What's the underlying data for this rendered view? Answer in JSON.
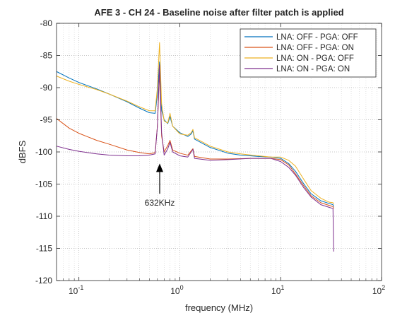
{
  "chart_data": {
    "type": "line",
    "title": "AFE 3 - CH 24 - Baseline noise after filter patch is applied",
    "xlabel": "frequency (MHz)",
    "ylabel": "dBFS",
    "xscale": "log",
    "xlim": [
      0.06,
      100
    ],
    "ylim": [
      -120,
      -80
    ],
    "grid": true,
    "legend_position": "top-right",
    "x_ticks": [
      0.1,
      1,
      10,
      100
    ],
    "x_tick_labels": [
      {
        "base": "10",
        "exp": "-1"
      },
      {
        "base": "10",
        "exp": "0"
      },
      {
        "base": "10",
        "exp": "1"
      },
      {
        "base": "10",
        "exp": "2"
      }
    ],
    "y_ticks": [
      -80,
      -85,
      -90,
      -95,
      -100,
      -105,
      -110,
      -115,
      -120
    ],
    "y_tick_labels": [
      "-80",
      "-85",
      "-90",
      "-95",
      "-100",
      "-105",
      "-110",
      "-115",
      "-120"
    ],
    "series": [
      {
        "name": "LNA: OFF - PGA: OFF",
        "color": "#0072BD",
        "points": [
          [
            0.06,
            -87.5
          ],
          [
            0.08,
            -88.5
          ],
          [
            0.1,
            -89.2
          ],
          [
            0.15,
            -90.2
          ],
          [
            0.2,
            -91
          ],
          [
            0.3,
            -92.2
          ],
          [
            0.4,
            -93.2
          ],
          [
            0.5,
            -93.9
          ],
          [
            0.57,
            -94
          ],
          [
            0.6,
            -91
          ],
          [
            0.63,
            -86
          ],
          [
            0.66,
            -93.5
          ],
          [
            0.7,
            -95
          ],
          [
            0.76,
            -95.6
          ],
          [
            0.8,
            -94.5
          ],
          [
            0.85,
            -96
          ],
          [
            1,
            -97
          ],
          [
            1.2,
            -97.6
          ],
          [
            1.3,
            -97.2
          ],
          [
            1.35,
            -96.7
          ],
          [
            1.4,
            -98
          ],
          [
            2,
            -99.3
          ],
          [
            3,
            -100.2
          ],
          [
            4,
            -100.5
          ],
          [
            6,
            -100.7
          ],
          [
            8,
            -100.8
          ],
          [
            10,
            -101
          ],
          [
            12,
            -101.8
          ],
          [
            14,
            -103
          ],
          [
            17,
            -105
          ],
          [
            20,
            -106.5
          ],
          [
            25,
            -107.6
          ],
          [
            30,
            -108
          ],
          [
            33,
            -108.2
          ],
          [
            33.5,
            -108.5
          ]
        ]
      },
      {
        "name": "LNA: OFF - PGA: ON",
        "color": "#D95319",
        "points": [
          [
            0.06,
            -94.8
          ],
          [
            0.08,
            -96.3
          ],
          [
            0.1,
            -97.1
          ],
          [
            0.15,
            -98.2
          ],
          [
            0.2,
            -98.8
          ],
          [
            0.3,
            -99.7
          ],
          [
            0.4,
            -100.1
          ],
          [
            0.5,
            -100.3
          ],
          [
            0.57,
            -100.1
          ],
          [
            0.6,
            -96
          ],
          [
            0.63,
            -87.5
          ],
          [
            0.66,
            -97.5
          ],
          [
            0.7,
            -100
          ],
          [
            0.76,
            -99
          ],
          [
            0.8,
            -98.2
          ],
          [
            0.85,
            -99.7
          ],
          [
            1,
            -100.2
          ],
          [
            1.2,
            -100.5
          ],
          [
            1.35,
            -99.5
          ],
          [
            1.4,
            -100.7
          ],
          [
            2,
            -101.1
          ],
          [
            3,
            -101.1
          ],
          [
            5,
            -101
          ],
          [
            8,
            -101
          ],
          [
            10,
            -101.2
          ],
          [
            12,
            -102
          ],
          [
            14,
            -103.4
          ],
          [
            17,
            -105.3
          ],
          [
            20,
            -106.8
          ],
          [
            25,
            -107.9
          ],
          [
            30,
            -108.3
          ],
          [
            33,
            -108.5
          ],
          [
            33.5,
            -108.8
          ]
        ]
      },
      {
        "name": "LNA: ON - PGA: OFF",
        "color": "#EDB120",
        "points": [
          [
            0.06,
            -88.2
          ],
          [
            0.08,
            -89
          ],
          [
            0.1,
            -89.5
          ],
          [
            0.15,
            -90.3
          ],
          [
            0.2,
            -91
          ],
          [
            0.3,
            -92.1
          ],
          [
            0.4,
            -93
          ],
          [
            0.5,
            -93.6
          ],
          [
            0.57,
            -93.6
          ],
          [
            0.6,
            -90
          ],
          [
            0.63,
            -83
          ],
          [
            0.66,
            -92.5
          ],
          [
            0.7,
            -95.2
          ],
          [
            0.76,
            -95.5
          ],
          [
            0.8,
            -94
          ],
          [
            0.85,
            -96
          ],
          [
            1,
            -97.2
          ],
          [
            1.2,
            -97.4
          ],
          [
            1.3,
            -97
          ],
          [
            1.35,
            -96.5
          ],
          [
            1.4,
            -97.8
          ],
          [
            2,
            -99.1
          ],
          [
            3,
            -100
          ],
          [
            4,
            -100.3
          ],
          [
            6,
            -100.6
          ],
          [
            8,
            -100.8
          ],
          [
            10,
            -100.8
          ],
          [
            12,
            -101.3
          ],
          [
            14,
            -102.2
          ],
          [
            17,
            -104.3
          ],
          [
            20,
            -106
          ],
          [
            25,
            -107.2
          ],
          [
            30,
            -107.8
          ],
          [
            33,
            -107.9
          ],
          [
            33.5,
            -108.1
          ]
        ]
      },
      {
        "name": "LNA: ON - PGA: ON",
        "color": "#7E2F8E",
        "points": [
          [
            0.06,
            -99.1
          ],
          [
            0.08,
            -99.6
          ],
          [
            0.1,
            -99.9
          ],
          [
            0.15,
            -100.3
          ],
          [
            0.2,
            -100.5
          ],
          [
            0.3,
            -100.6
          ],
          [
            0.4,
            -100.6
          ],
          [
            0.5,
            -100.5
          ],
          [
            0.57,
            -100.3
          ],
          [
            0.6,
            -96
          ],
          [
            0.63,
            -86.5
          ],
          [
            0.66,
            -97
          ],
          [
            0.7,
            -100.5
          ],
          [
            0.76,
            -99.5
          ],
          [
            0.8,
            -98.5
          ],
          [
            0.85,
            -100
          ],
          [
            1,
            -100.6
          ],
          [
            1.2,
            -100.8
          ],
          [
            1.35,
            -99.6
          ],
          [
            1.4,
            -101
          ],
          [
            2,
            -101.3
          ],
          [
            3,
            -101.2
          ],
          [
            5,
            -101
          ],
          [
            8,
            -101
          ],
          [
            10,
            -101.5
          ],
          [
            12,
            -102.4
          ],
          [
            14,
            -103.6
          ],
          [
            17,
            -105.6
          ],
          [
            20,
            -107
          ],
          [
            25,
            -108.2
          ],
          [
            30,
            -108.6
          ],
          [
            33,
            -108.8
          ],
          [
            33.5,
            -115.5
          ]
        ]
      }
    ],
    "annotation": {
      "text": "632KHz",
      "x": 0.632,
      "y_tip": -101.8,
      "y_tail": -106.5
    }
  }
}
